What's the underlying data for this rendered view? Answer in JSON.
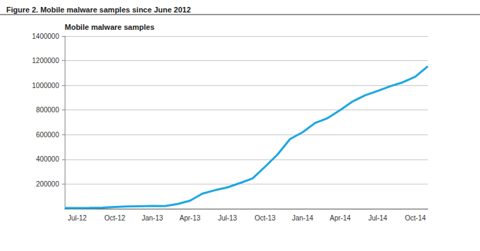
{
  "chart_data": {
    "type": "line",
    "title": "Figure 2. Mobile malware samples since June 2012",
    "y_label": "Mobile malware samples",
    "categories": [
      null,
      "Jul-12",
      null,
      null,
      "Oct-12",
      null,
      null,
      "Jan-13",
      null,
      null,
      "Apr-13",
      null,
      null,
      "Jul-13",
      null,
      null,
      "Oct-13",
      null,
      null,
      "Jan-14",
      null,
      null,
      "Apr-14",
      null,
      null,
      "Jul-14",
      null,
      null,
      "Oct-14",
      null
    ],
    "values": [
      5000,
      6000,
      7000,
      9000,
      14000,
      18000,
      20000,
      22000,
      21000,
      38000,
      65000,
      122000,
      150000,
      173000,
      208000,
      245000,
      340000,
      440000,
      565000,
      620000,
      695000,
      735000,
      800000,
      870000,
      920000,
      955000,
      993000,
      1025000,
      1070000,
      1155000
    ],
    "color": "#1ea7e1",
    "ylim": [
      0,
      1400000
    ],
    "yticks": [
      200000,
      400000,
      600000,
      800000,
      1000000,
      1200000,
      1400000
    ],
    "grid": true
  }
}
